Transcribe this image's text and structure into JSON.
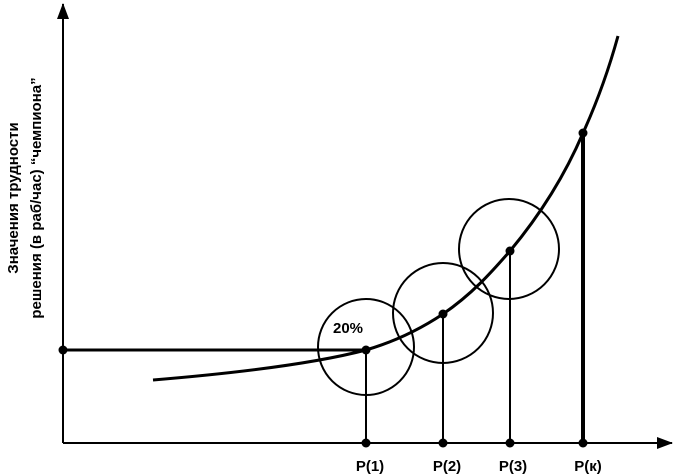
{
  "axis": {
    "y_label": [
      "Значения трудности",
      "решения (в раб/час) “чемпиона”"
    ]
  },
  "annotation": "20%",
  "points": [
    {
      "label": "P(1)"
    },
    {
      "label": "P(2)"
    },
    {
      "label": "P(3)"
    },
    {
      "label": "P(к)"
    }
  ]
}
